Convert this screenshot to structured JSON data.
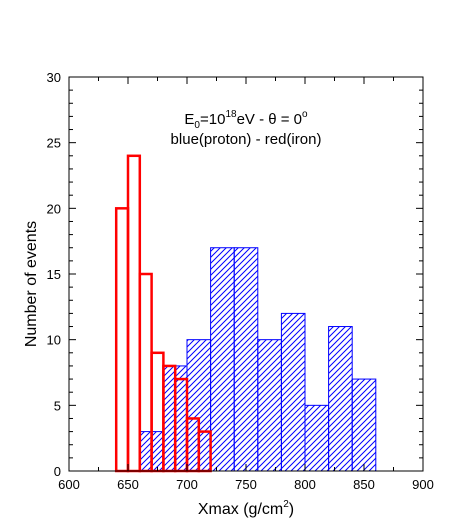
{
  "chart_data": {
    "type": "bar",
    "subtype": "histogram",
    "xlabel_main": "Xmax (g/cm",
    "xlabel_sup": "2",
    "xlabel_close": ")",
    "ylabel": "Number of events",
    "xlim": [
      600,
      900
    ],
    "ylim": [
      0,
      30
    ],
    "x_ticks": [
      600,
      650,
      700,
      750,
      800,
      850,
      900
    ],
    "x_tick_labels": [
      "600",
      "650",
      "700",
      "750",
      "800",
      "850",
      "900"
    ],
    "y_ticks": [
      0,
      5,
      10,
      15,
      20,
      25,
      30
    ],
    "y_tick_labels": [
      "0",
      "5",
      "10",
      "15",
      "20",
      "25",
      "30"
    ],
    "annotation": {
      "line1_E": "E",
      "line1_sub": "0",
      "line1_eq": "=10",
      "line1_exp": "18",
      "line1_rest": "eV - θ = 0",
      "line1_deg": "o",
      "line2": "blue(proton) - red(iron)"
    },
    "series": [
      {
        "name": "proton",
        "color": "#0000ff",
        "style": "hatched",
        "bin_width": 20,
        "bins": [
          {
            "x_start": 660,
            "value": 3
          },
          {
            "x_start": 680,
            "value": 8
          },
          {
            "x_start": 700,
            "value": 10
          },
          {
            "x_start": 720,
            "value": 17
          },
          {
            "x_start": 740,
            "value": 17
          },
          {
            "x_start": 760,
            "value": 10
          },
          {
            "x_start": 780,
            "value": 12
          },
          {
            "x_start": 800,
            "value": 5
          },
          {
            "x_start": 820,
            "value": 11
          },
          {
            "x_start": 840,
            "value": 7
          }
        ]
      },
      {
        "name": "iron",
        "color": "#ff0000",
        "style": "outline",
        "bin_width": 10,
        "bins": [
          {
            "x_start": 640,
            "value": 20
          },
          {
            "x_start": 650,
            "value": 24
          },
          {
            "x_start": 660,
            "value": 15
          },
          {
            "x_start": 670,
            "value": 9
          },
          {
            "x_start": 680,
            "value": 8
          },
          {
            "x_start": 690,
            "value": 7
          },
          {
            "x_start": 700,
            "value": 4
          },
          {
            "x_start": 710,
            "value": 3
          }
        ]
      }
    ]
  }
}
